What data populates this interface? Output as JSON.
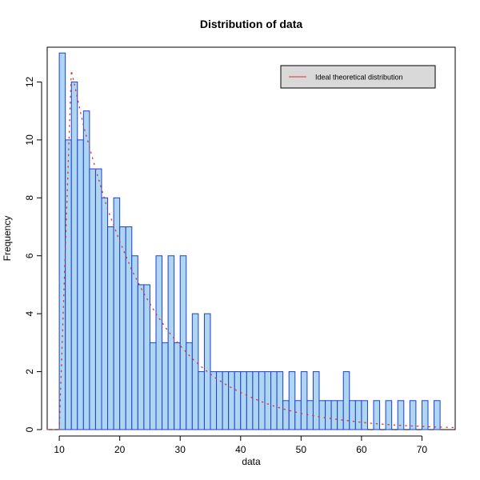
{
  "chart_data": {
    "type": "bar",
    "title": "Distribution of data",
    "xlabel": "data",
    "ylabel": "Frequency",
    "xlim": [
      8,
      75.5
    ],
    "ylim": [
      0,
      13.2
    ],
    "x_ticks": [
      10,
      20,
      30,
      40,
      50,
      60,
      70
    ],
    "y_ticks": [
      0,
      2,
      4,
      6,
      8,
      10,
      12
    ],
    "bin_width": 1,
    "bin_edges_start": 10,
    "values": [
      13,
      10,
      12,
      10,
      11,
      9,
      9,
      8,
      7,
      8,
      7,
      7,
      6,
      5,
      5,
      3,
      6,
      3,
      6,
      3,
      6,
      3,
      4,
      2,
      4,
      2,
      2,
      2,
      2,
      2,
      2,
      2,
      2,
      2,
      2,
      2,
      2,
      1,
      2,
      1,
      2,
      1,
      2,
      1,
      1,
      1,
      1,
      2,
      1,
      1,
      1,
      0,
      1,
      0,
      1,
      0,
      1,
      0,
      1,
      0,
      1,
      0,
      1,
      0
    ],
    "bar_fill": "#aed6f1",
    "bar_stroke": "#1f3fd6",
    "theoretical": {
      "name": "Ideal theoretical distribution",
      "color": "#e0302a",
      "style": "dotted",
      "x": [
        8.0,
        10.0,
        12.0,
        14.0,
        16.0,
        18.0,
        20.0,
        22.0,
        24.0,
        26.0,
        28.0,
        30.0,
        32.0,
        34.0,
        36.0,
        38.0,
        40.0,
        42.0,
        44.0,
        46.0,
        48.0,
        50.0,
        52.0,
        54.0,
        56.0,
        58.0,
        60.0,
        62.0,
        64.0,
        66.0,
        68.0,
        70.0,
        72.0,
        74.0,
        75.5
      ],
      "y": [
        0,
        0,
        12.4,
        10.5,
        9.0,
        7.6,
        6.5,
        5.5,
        4.7,
        4.0,
        3.4,
        2.9,
        2.45,
        2.08,
        1.76,
        1.5,
        1.28,
        1.09,
        0.92,
        0.78,
        0.66,
        0.56,
        0.48,
        0.41,
        0.35,
        0.3,
        0.25,
        0.21,
        0.18,
        0.15,
        0.13,
        0.11,
        0.09,
        0.08,
        0.07
      ]
    },
    "legend_position": "top-right",
    "grid": false
  }
}
